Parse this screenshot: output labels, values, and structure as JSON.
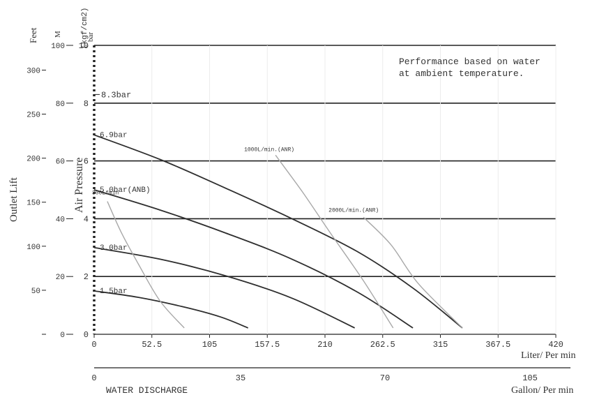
{
  "chart_data": {
    "type": "line",
    "note": [
      "Performance based on water",
      "at ambient temperature."
    ],
    "x_axis_liter": {
      "label": "Liter/ Per min",
      "ticks": [
        "0",
        "52.5",
        "105",
        "157.5",
        "210",
        "262.5",
        "315",
        "367.5",
        "420"
      ],
      "range": [
        0,
        420
      ]
    },
    "x_axis_gallon": {
      "label": "Gallon/ Per min",
      "ticks": [
        "0",
        "35",
        "70",
        "105"
      ]
    },
    "water_discharge_label": "WATER DISCHARGE",
    "air_pressure_axis": {
      "label": "Air Pressure",
      "unit_label": "(kgf/cm2)",
      "unit_bar": "bar",
      "ticks": [
        "0",
        "2",
        "4",
        "6",
        "8",
        "10"
      ],
      "range": [
        0,
        10
      ]
    },
    "outlet_lift_label": "Outlet Lift",
    "lift_m_axis": {
      "label": "M",
      "ticks": [
        "0",
        "20",
        "40",
        "60",
        "80",
        "100"
      ]
    },
    "lift_feet_axis": {
      "label": "Feet",
      "ticks": [
        "50",
        "100",
        "150",
        "200",
        "250",
        "300"
      ]
    },
    "pressure_curves": [
      {
        "label": "1.5bar",
        "points": [
          [
            0,
            1.5
          ],
          [
            40,
            1.28
          ],
          [
            80,
            0.96
          ],
          [
            115,
            0.6
          ],
          [
            140,
            0.22
          ]
        ]
      },
      {
        "label": "3.0bar",
        "points": [
          [
            0,
            3.0
          ],
          [
            60,
            2.6
          ],
          [
            120,
            2.02
          ],
          [
            180,
            1.25
          ],
          [
            237,
            0.22
          ]
        ]
      },
      {
        "label": "5.0bar(ANB)",
        "points": [
          [
            0,
            5.0
          ],
          [
            60,
            4.3
          ],
          [
            120,
            3.5
          ],
          [
            180,
            2.6
          ],
          [
            240,
            1.45
          ],
          [
            290,
            0.22
          ]
        ]
      },
      {
        "label": "6.9bar",
        "points": [
          [
            0,
            6.9
          ],
          [
            60,
            6.05
          ],
          [
            120,
            5.05
          ],
          [
            180,
            4.0
          ],
          [
            240,
            2.85
          ],
          [
            290,
            1.6
          ],
          [
            335,
            0.22
          ]
        ]
      }
    ],
    "air_consumption_curves": [
      {
        "label": "300L/min",
        "points": [
          [
            12,
            4.6
          ],
          [
            25,
            3.5
          ],
          [
            40,
            2.45
          ],
          [
            60,
            1.15
          ],
          [
            82,
            0.22
          ]
        ]
      },
      {
        "label": "1000L/min.(ANR)",
        "points": [
          [
            165,
            6.2
          ],
          [
            190,
            4.9
          ],
          [
            215,
            3.5
          ],
          [
            245,
            1.85
          ],
          [
            272,
            0.22
          ]
        ]
      },
      {
        "label": "2000L/min.(ANR)",
        "points": [
          [
            245,
            4.05
          ],
          [
            270,
            3.1
          ],
          [
            295,
            1.75
          ],
          [
            335,
            0.22
          ]
        ]
      }
    ]
  }
}
